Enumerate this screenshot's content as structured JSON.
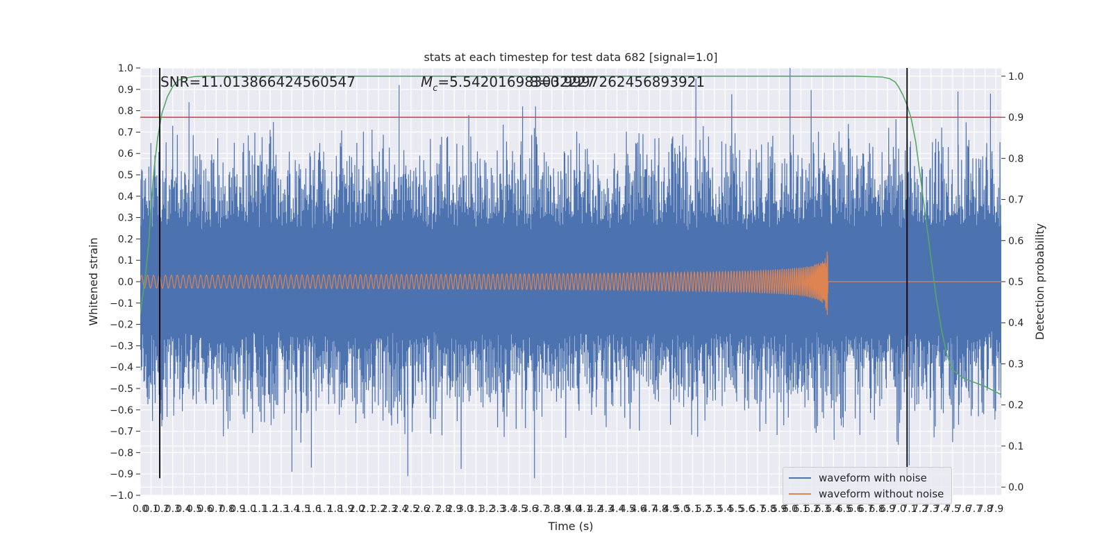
{
  "chart_data": {
    "type": "line",
    "title": "stats at each timestep for test data 682 [signal=1.0]",
    "xlabel": "Time (s)",
    "ylabel": "Whitened strain",
    "y2label": "Detection probability",
    "xlim": [
      0,
      7.95
    ],
    "ylim": [
      -1.0,
      1.0
    ],
    "y2lim": [
      -0.02,
      1.02
    ],
    "x_ticks": [
      0.0,
      0.1,
      0.2,
      0.3,
      0.4,
      0.5,
      0.6,
      0.7,
      0.8,
      0.9,
      1.0,
      1.1,
      1.2,
      1.3,
      1.4,
      1.5,
      1.6,
      1.7,
      1.8,
      1.9,
      2.0,
      2.1,
      2.2,
      2.3,
      2.4,
      2.5,
      2.6,
      2.7,
      2.8,
      2.9,
      3.0,
      3.1,
      3.2,
      3.3,
      3.4,
      3.5,
      3.6,
      3.7,
      3.8,
      3.9,
      4.0,
      4.1,
      4.2,
      4.3,
      4.4,
      4.5,
      4.6,
      4.7,
      4.8,
      4.9,
      5.0,
      5.1,
      5.2,
      5.3,
      5.4,
      5.5,
      5.6,
      5.7,
      5.8,
      5.9,
      6.0,
      6.1,
      6.2,
      6.3,
      6.4,
      6.5,
      6.6,
      6.7,
      6.8,
      6.9,
      7.0,
      7.1,
      7.2,
      7.3,
      7.4,
      7.5,
      7.6,
      7.7,
      7.8,
      7.9
    ],
    "y_ticks": [
      -1.0,
      -0.9,
      -0.8,
      -0.7,
      -0.6,
      -0.5,
      -0.4,
      -0.3,
      -0.2,
      -0.1,
      0.0,
      0.1,
      0.2,
      0.3,
      0.4,
      0.5,
      0.6,
      0.7,
      0.8,
      0.9,
      1.0
    ],
    "y2_ticks": [
      0.0,
      0.1,
      0.2,
      0.3,
      0.4,
      0.5,
      0.6,
      0.7,
      0.8,
      0.9,
      1.0
    ],
    "grid": true,
    "legend_position": "lower right",
    "annotations": {
      "snr": "SNR=11.013866424560547",
      "mc_prefix": "M",
      "mc_sub": "c",
      "mc_value": "=5.542016983032227",
      "third": "8=0.9997262456893921"
    },
    "threshold_probability": 0.9,
    "vertical_lines_x": [
      0.18,
      7.08
    ],
    "noise_series": {
      "name": "waveform with noise",
      "color": "#4c72b0",
      "core_band": [
        -0.1,
        0.11
      ],
      "peak_extremes": [
        {
          "x": 0.45,
          "y": 0.84
        },
        {
          "x": 2.39,
          "y": 0.92
        },
        {
          "x": 3.53,
          "y": 0.82
        },
        {
          "x": 3.65,
          "y": 0.82
        },
        {
          "x": 5.13,
          "y": 0.95
        },
        {
          "x": 6.0,
          "y": 1.0
        },
        {
          "x": 7.55,
          "y": 0.89
        },
        {
          "x": 7.85,
          "y": 0.88
        },
        {
          "x": 1.4,
          "y": -0.89
        },
        {
          "x": 1.58,
          "y": -0.87
        },
        {
          "x": 2.47,
          "y": -0.91
        },
        {
          "x": 3.64,
          "y": -0.92
        },
        {
          "x": 7.1,
          "y": -0.86
        }
      ]
    },
    "signal_series": {
      "name": "waveform without noise",
      "color": "#dd8452",
      "amplitude_start": 0.03,
      "merger_time": 6.35,
      "peak_max": 0.33,
      "peak_min": -0.27
    },
    "probability_series": {
      "color": "#55a868",
      "x": [
        0.0,
        0.02,
        0.05,
        0.08,
        0.1,
        0.13,
        0.16,
        0.2,
        0.25,
        0.3,
        0.35,
        0.4,
        0.5,
        0.6,
        0.8,
        1.0,
        3.0,
        5.0,
        6.6,
        6.85,
        6.92,
        6.97,
        7.0,
        7.04,
        7.08,
        7.12,
        7.16,
        7.2,
        7.25,
        7.3,
        7.35,
        7.4,
        7.45,
        7.5,
        7.6,
        7.7,
        7.8,
        7.95
      ],
      "y": [
        0.42,
        0.46,
        0.52,
        0.6,
        0.69,
        0.78,
        0.85,
        0.91,
        0.95,
        0.975,
        0.99,
        0.995,
        0.999,
        1.0,
        1.0,
        1.0,
        1.0,
        1.0,
        1.0,
        0.998,
        0.994,
        0.986,
        0.975,
        0.955,
        0.93,
        0.895,
        0.84,
        0.76,
        0.66,
        0.56,
        0.46,
        0.38,
        0.32,
        0.285,
        0.265,
        0.255,
        0.245,
        0.225
      ]
    }
  },
  "legend": {
    "noise_label": "waveform with noise",
    "signal_label": "waveform without noise"
  }
}
